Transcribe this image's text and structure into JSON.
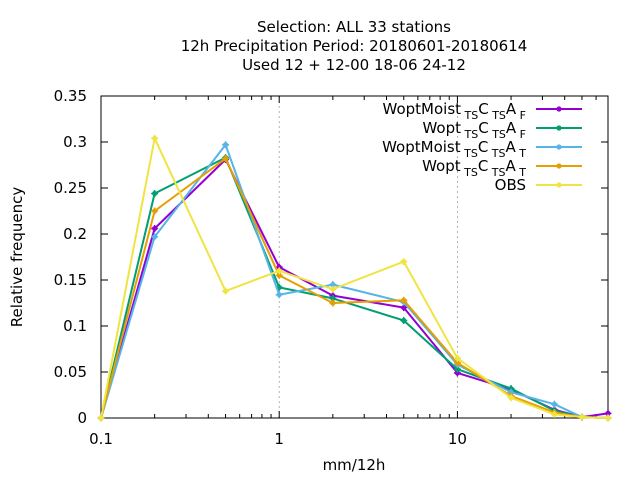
{
  "chart_data": {
    "type": "line",
    "title_lines": [
      "Selection: ALL      33 stations",
      "12h Precipitation  Period: 20180601-20180614",
      "Used  12 + 12-00 18-06 24-12"
    ],
    "xlabel": "mm/12h",
    "ylabel": "Relative frequency",
    "x_scale": "log",
    "xlim": [
      0.1,
      70
    ],
    "ylim": [
      0,
      0.35
    ],
    "x_ticks": [
      {
        "value": 0.1,
        "label": "0.1"
      },
      {
        "value": 1,
        "label": "1"
      },
      {
        "value": 10,
        "label": "10"
      }
    ],
    "y_ticks": [
      {
        "value": 0,
        "label": "0"
      },
      {
        "value": 0.05,
        "label": "0.05"
      },
      {
        "value": 0.1,
        "label": "0.1"
      },
      {
        "value": 0.15,
        "label": "0.15"
      },
      {
        "value": 0.2,
        "label": "0.2"
      },
      {
        "value": 0.25,
        "label": "0.25"
      },
      {
        "value": 0.3,
        "label": "0.3"
      },
      {
        "value": 0.35,
        "label": "0.35"
      }
    ],
    "grid": true,
    "legend_position": "top-right",
    "x": [
      0.1,
      0.2,
      0.5,
      1,
      2,
      5,
      10,
      20,
      35,
      50,
      70
    ],
    "series": [
      {
        "name": "WoptMoist_TSC_TSA_F",
        "legend": {
          "main": "WoptMoist",
          "parts": [
            [
              "TS",
              "C"
            ],
            [
              "TS",
              "A"
            ],
            [
              "F",
              ""
            ]
          ]
        },
        "color": "#9400d3",
        "marker": "plus",
        "values": [
          0,
          0.206,
          0.281,
          0.164,
          0.133,
          0.12,
          0.049,
          0.031,
          0.009,
          0.001,
          0.005
        ]
      },
      {
        "name": "Wopt_TSC_TSA_F",
        "legend": {
          "main": "Wopt",
          "parts": [
            [
              "TS",
              "C"
            ],
            [
              "TS",
              "A"
            ],
            [
              "F",
              ""
            ]
          ]
        },
        "color": "#009e73",
        "marker": "plus",
        "values": [
          0,
          0.244,
          0.283,
          0.142,
          0.13,
          0.106,
          0.053,
          0.032,
          0.008,
          0.001,
          0
        ]
      },
      {
        "name": "WoptMoist_TSC_TSA_T",
        "legend": {
          "main": "WoptMoist",
          "parts": [
            [
              "TS",
              "C"
            ],
            [
              "TS",
              "A"
            ],
            [
              "T",
              ""
            ]
          ]
        },
        "color": "#56b4e9",
        "marker": "plus",
        "values": [
          0,
          0.197,
          0.297,
          0.134,
          0.145,
          0.126,
          0.058,
          0.028,
          0.015,
          0.001,
          0
        ]
      },
      {
        "name": "Wopt_TSC_TSA_T",
        "legend": {
          "main": "Wopt",
          "parts": [
            [
              "TS",
              "C"
            ],
            [
              "TS",
              "A"
            ],
            [
              "T",
              ""
            ]
          ]
        },
        "color": "#e69f00",
        "marker": "plus",
        "values": [
          0,
          0.225,
          0.282,
          0.155,
          0.125,
          0.128,
          0.06,
          0.024,
          0.006,
          0.001,
          0
        ]
      },
      {
        "name": "OBS",
        "legend": {
          "main": "OBS",
          "parts": []
        },
        "color": "#f0e442",
        "marker": "plus",
        "values": [
          0,
          0.304,
          0.138,
          0.16,
          0.14,
          0.17,
          0.065,
          0.022,
          0.004,
          0.001,
          0
        ]
      }
    ]
  }
}
